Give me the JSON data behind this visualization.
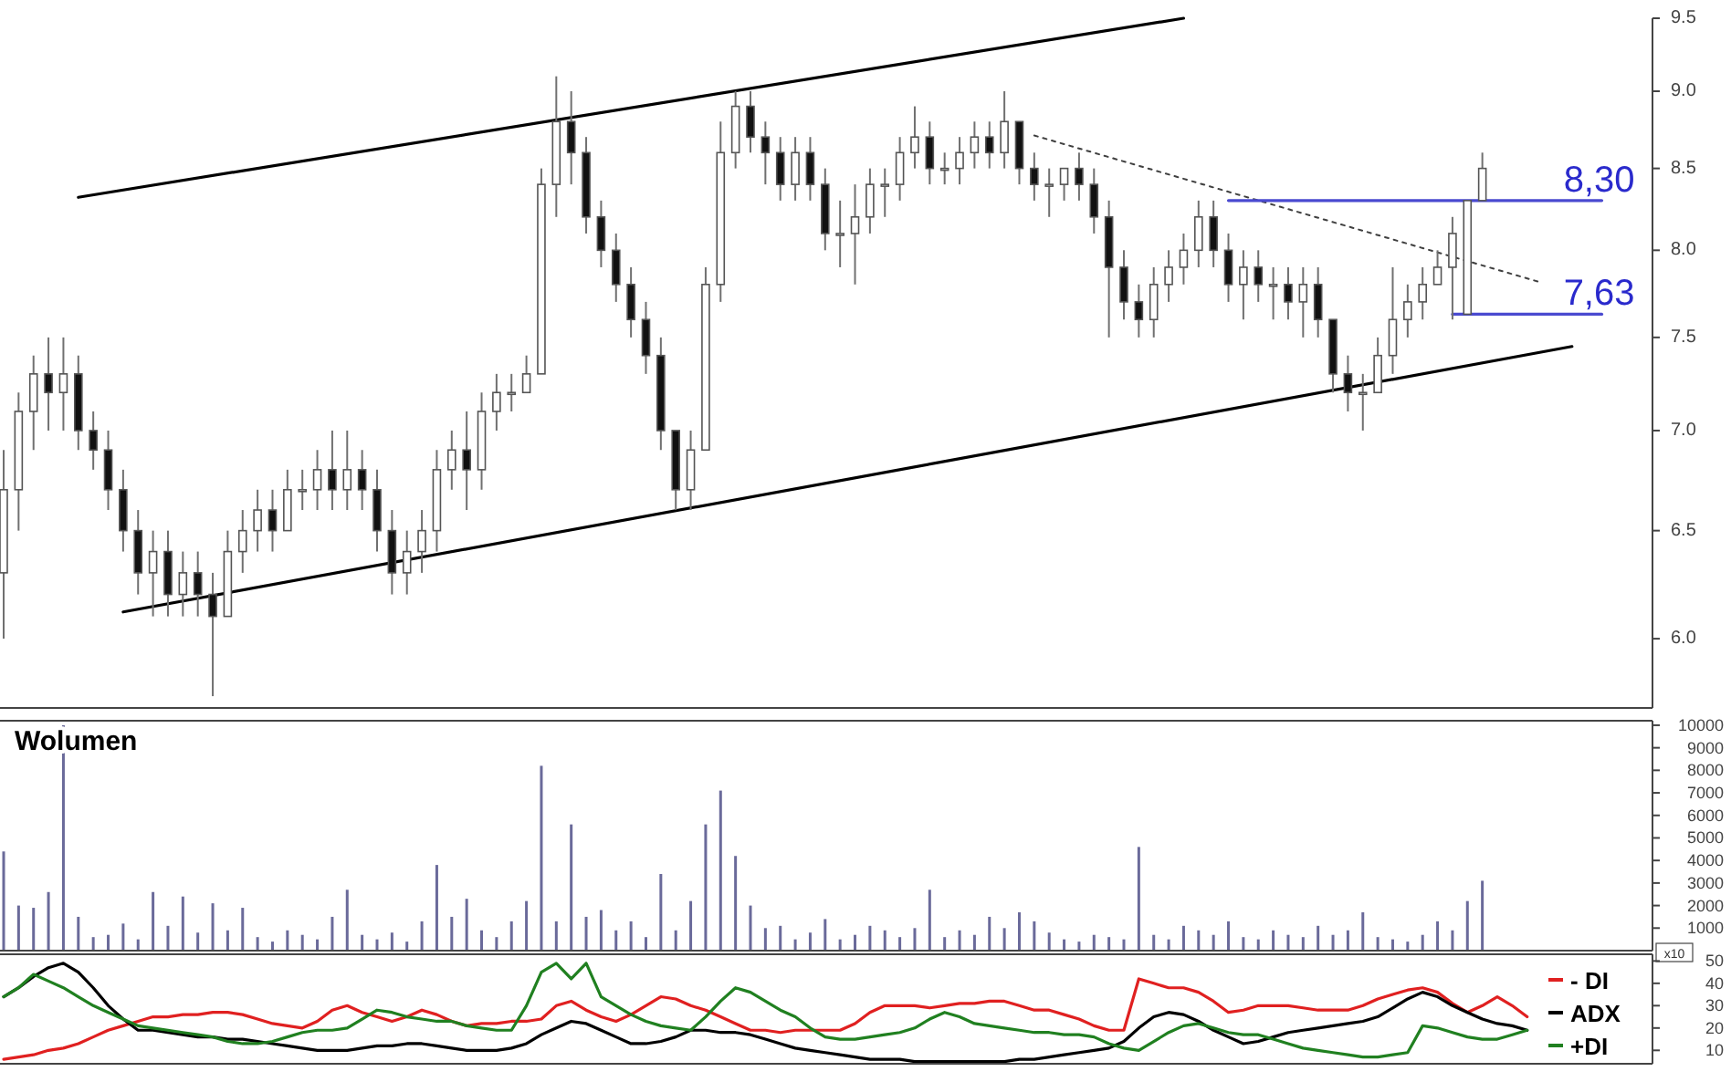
{
  "chart_data": [
    {
      "type": "candlestick",
      "log": true,
      "tick_labels": "y",
      "ylim": [
        5.7,
        9.5
      ],
      "yticks": [
        {
          "value": 6,
          "label": "6.0"
        },
        {
          "value": 6.5,
          "label": "6.5"
        },
        {
          "value": 7,
          "label": "7.0"
        },
        {
          "value": 7.5,
          "label": "7.5"
        },
        {
          "value": 8,
          "label": "8.0"
        },
        {
          "value": 8.5,
          "label": "8.5"
        },
        {
          "value": 9,
          "label": "9.0"
        },
        {
          "value": 9.5,
          "label": "9.5"
        }
      ],
      "categories": [
        null,
        null,
        null,
        null,
        null,
        null,
        null,
        null,
        null,
        null,
        null,
        null,
        null,
        null,
        null,
        null,
        null,
        null,
        null,
        null,
        null,
        null,
        null,
        null,
        null,
        null,
        null,
        null,
        null,
        null,
        null,
        null,
        null,
        null,
        null,
        null,
        null,
        null,
        null,
        null,
        null,
        null,
        null,
        null,
        null,
        null,
        null,
        null,
        null,
        null,
        null,
        null,
        null,
        null,
        null,
        null,
        null,
        null,
        null,
        null,
        null,
        null,
        null,
        null,
        null,
        null,
        null,
        null,
        null,
        null,
        null,
        null,
        null,
        null,
        null,
        null,
        null,
        null,
        null,
        null,
        null,
        null,
        null,
        null,
        null,
        null,
        null,
        null,
        null,
        null,
        null,
        null,
        null,
        null,
        null,
        null,
        null,
        null,
        null,
        null,
        null,
        null,
        null,
        null,
        null,
        null,
        null,
        null
      ],
      "ohlc": [
        [
          6.3,
          6.9,
          6.0,
          6.7
        ],
        [
          6.7,
          7.2,
          6.5,
          7.1
        ],
        [
          7.1,
          7.4,
          6.9,
          7.3
        ],
        [
          7.3,
          7.5,
          7.0,
          7.2
        ],
        [
          7.2,
          7.5,
          7.0,
          7.3
        ],
        [
          7.3,
          7.4,
          6.9,
          7.0
        ],
        [
          7.0,
          7.1,
          6.8,
          6.9
        ],
        [
          6.9,
          7.0,
          6.6,
          6.7
        ],
        [
          6.7,
          6.8,
          6.4,
          6.5
        ],
        [
          6.5,
          6.6,
          6.2,
          6.3
        ],
        [
          6.3,
          6.5,
          6.1,
          6.4
        ],
        [
          6.4,
          6.5,
          6.1,
          6.2
        ],
        [
          6.2,
          6.4,
          6.1,
          6.3
        ],
        [
          6.3,
          6.4,
          6.1,
          6.2
        ],
        [
          6.2,
          6.3,
          5.75,
          6.1
        ],
        [
          6.1,
          6.5,
          6.1,
          6.4
        ],
        [
          6.4,
          6.6,
          6.3,
          6.5
        ],
        [
          6.5,
          6.7,
          6.4,
          6.6
        ],
        [
          6.6,
          6.7,
          6.4,
          6.5
        ],
        [
          6.5,
          6.8,
          6.5,
          6.7
        ],
        [
          6.7,
          6.8,
          6.6,
          6.7
        ],
        [
          6.7,
          6.9,
          6.6,
          6.8
        ],
        [
          6.8,
          7.0,
          6.6,
          6.7
        ],
        [
          6.7,
          7.0,
          6.6,
          6.8
        ],
        [
          6.8,
          6.9,
          6.6,
          6.7
        ],
        [
          6.7,
          6.8,
          6.4,
          6.5
        ],
        [
          6.5,
          6.6,
          6.2,
          6.3
        ],
        [
          6.3,
          6.5,
          6.2,
          6.4
        ],
        [
          6.4,
          6.6,
          6.3,
          6.5
        ],
        [
          6.5,
          6.9,
          6.4,
          6.8
        ],
        [
          6.8,
          7.0,
          6.7,
          6.9
        ],
        [
          6.9,
          7.1,
          6.6,
          6.8
        ],
        [
          6.8,
          7.2,
          6.7,
          7.1
        ],
        [
          7.1,
          7.3,
          7.0,
          7.2
        ],
        [
          7.2,
          7.3,
          7.1,
          7.2
        ],
        [
          7.2,
          7.4,
          7.2,
          7.3
        ],
        [
          7.3,
          8.5,
          7.3,
          8.4
        ],
        [
          8.4,
          9.1,
          8.2,
          8.8
        ],
        [
          8.8,
          9.0,
          8.4,
          8.6
        ],
        [
          8.6,
          8.7,
          8.1,
          8.2
        ],
        [
          8.2,
          8.3,
          7.9,
          8.0
        ],
        [
          8.0,
          8.1,
          7.7,
          7.8
        ],
        [
          7.8,
          7.9,
          7.5,
          7.6
        ],
        [
          7.6,
          7.7,
          7.3,
          7.4
        ],
        [
          7.4,
          7.5,
          6.9,
          7.0
        ],
        [
          7.0,
          7.0,
          6.6,
          6.7
        ],
        [
          6.7,
          7.0,
          6.6,
          6.9
        ],
        [
          6.9,
          7.9,
          6.9,
          7.8
        ],
        [
          7.8,
          8.8,
          7.7,
          8.6
        ],
        [
          8.6,
          9.0,
          8.5,
          8.9
        ],
        [
          8.9,
          9.0,
          8.6,
          8.7
        ],
        [
          8.7,
          8.8,
          8.4,
          8.6
        ],
        [
          8.6,
          8.7,
          8.3,
          8.4
        ],
        [
          8.4,
          8.7,
          8.3,
          8.6
        ],
        [
          8.6,
          8.7,
          8.3,
          8.4
        ],
        [
          8.4,
          8.5,
          8.0,
          8.1
        ],
        [
          8.1,
          8.3,
          7.9,
          8.1
        ],
        [
          8.1,
          8.4,
          7.8,
          8.2
        ],
        [
          8.2,
          8.5,
          8.1,
          8.4
        ],
        [
          8.4,
          8.5,
          8.2,
          8.4
        ],
        [
          8.4,
          8.7,
          8.3,
          8.6
        ],
        [
          8.6,
          8.9,
          8.5,
          8.7
        ],
        [
          8.7,
          8.8,
          8.4,
          8.5
        ],
        [
          8.5,
          8.6,
          8.4,
          8.5
        ],
        [
          8.5,
          8.7,
          8.4,
          8.6
        ],
        [
          8.6,
          8.8,
          8.5,
          8.7
        ],
        [
          8.7,
          8.8,
          8.5,
          8.6
        ],
        [
          8.6,
          9.0,
          8.5,
          8.8
        ],
        [
          8.8,
          8.8,
          8.4,
          8.5
        ],
        [
          8.5,
          8.6,
          8.3,
          8.4
        ],
        [
          8.4,
          8.5,
          8.2,
          8.4
        ],
        [
          8.4,
          8.5,
          8.3,
          8.5
        ],
        [
          8.5,
          8.6,
          8.3,
          8.4
        ],
        [
          8.4,
          8.5,
          8.1,
          8.2
        ],
        [
          8.2,
          8.3,
          7.5,
          7.9
        ],
        [
          7.9,
          8.0,
          7.6,
          7.7
        ],
        [
          7.7,
          7.8,
          7.5,
          7.6
        ],
        [
          7.6,
          7.9,
          7.5,
          7.8
        ],
        [
          7.8,
          8.0,
          7.7,
          7.9
        ],
        [
          7.9,
          8.1,
          7.8,
          8.0
        ],
        [
          8.0,
          8.3,
          7.9,
          8.2
        ],
        [
          8.2,
          8.3,
          7.9,
          8.0
        ],
        [
          8.0,
          8.1,
          7.7,
          7.8
        ],
        [
          7.8,
          8.0,
          7.6,
          7.9
        ],
        [
          7.9,
          8.0,
          7.7,
          7.8
        ],
        [
          7.8,
          7.9,
          7.6,
          7.8
        ],
        [
          7.8,
          7.9,
          7.6,
          7.7
        ],
        [
          7.7,
          7.9,
          7.5,
          7.8
        ],
        [
          7.8,
          7.9,
          7.5,
          7.6
        ],
        [
          7.6,
          7.6,
          7.2,
          7.3
        ],
        [
          7.3,
          7.4,
          7.1,
          7.2
        ],
        [
          7.2,
          7.3,
          7.0,
          7.2
        ],
        [
          7.2,
          7.5,
          7.2,
          7.4
        ],
        [
          7.4,
          7.9,
          7.3,
          7.6
        ],
        [
          7.6,
          7.8,
          7.5,
          7.7
        ],
        [
          7.7,
          7.9,
          7.6,
          7.8
        ],
        [
          7.8,
          8.0,
          7.8,
          7.9
        ],
        [
          7.9,
          8.2,
          7.6,
          8.1
        ],
        [
          7.63,
          8.3,
          7.63,
          8.3
        ],
        [
          8.3,
          8.6,
          8.3,
          8.5
        ],
        null,
        null,
        null,
        null,
        null,
        null,
        null,
        null
      ],
      "series": [
        {
          "type": "line",
          "color": "#000000",
          "line_style": "solid",
          "values": [
            null,
            null,
            null,
            null,
            null,
            8.32,
            null,
            null,
            null,
            null,
            null,
            null,
            null,
            null,
            null,
            null,
            null,
            null,
            null,
            null,
            null,
            null,
            null,
            null,
            null,
            null,
            null,
            null,
            null,
            null,
            null,
            null,
            null,
            null,
            null,
            null,
            null,
            null,
            null,
            null,
            null,
            null,
            null,
            null,
            null,
            null,
            null,
            null,
            null,
            null,
            null,
            null,
            null,
            null,
            null,
            null,
            null,
            null,
            null,
            null,
            null,
            null,
            null,
            null,
            null,
            null,
            null,
            null,
            null,
            null,
            null,
            null,
            null,
            null,
            null,
            null,
            null,
            null,
            null,
            9.5,
            null,
            null,
            null,
            null,
            null,
            null,
            null,
            null,
            null,
            null,
            null,
            null,
            null,
            null,
            null,
            null,
            null,
            null,
            null,
            null,
            null,
            null,
            null,
            null,
            null,
            null,
            null,
            null
          ]
        },
        {
          "type": "line",
          "color": "#000000",
          "line_style": "solid",
          "values": [
            null,
            null,
            null,
            null,
            null,
            null,
            null,
            null,
            6.12,
            null,
            null,
            null,
            null,
            null,
            null,
            null,
            null,
            null,
            null,
            null,
            null,
            null,
            null,
            null,
            null,
            null,
            null,
            null,
            null,
            null,
            null,
            null,
            null,
            null,
            null,
            null,
            null,
            null,
            null,
            null,
            null,
            null,
            null,
            null,
            null,
            null,
            null,
            null,
            null,
            null,
            null,
            null,
            null,
            null,
            null,
            null,
            null,
            null,
            null,
            null,
            null,
            null,
            null,
            null,
            null,
            null,
            null,
            null,
            null,
            null,
            null,
            null,
            null,
            null,
            null,
            null,
            null,
            null,
            null,
            null,
            null,
            null,
            null,
            null,
            null,
            null,
            null,
            null,
            null,
            null,
            null,
            null,
            null,
            null,
            null,
            null,
            null,
            null,
            null,
            null,
            null,
            null,
            null,
            null,
            null,
            7.45,
            null,
            null
          ]
        },
        {
          "type": "line",
          "color": "#404040",
          "line_style": "dotted",
          "values": [
            null,
            null,
            null,
            null,
            null,
            null,
            null,
            null,
            null,
            null,
            null,
            null,
            null,
            null,
            null,
            null,
            null,
            null,
            null,
            null,
            null,
            null,
            null,
            null,
            null,
            null,
            null,
            null,
            null,
            null,
            null,
            null,
            null,
            null,
            null,
            null,
            null,
            null,
            null,
            null,
            null,
            null,
            null,
            null,
            null,
            null,
            null,
            null,
            null,
            null,
            null,
            null,
            null,
            null,
            null,
            null,
            null,
            null,
            null,
            null,
            null,
            null,
            null,
            null,
            null,
            null,
            null,
            null,
            null,
            8.71,
            null,
            null,
            null,
            null,
            null,
            null,
            null,
            null,
            null,
            null,
            null,
            null,
            null,
            null,
            null,
            null,
            null,
            null,
            null,
            null,
            null,
            null,
            null,
            null,
            null,
            null,
            null,
            null,
            null,
            null,
            null,
            null,
            null,
            7.81,
            null,
            null,
            null,
            null
          ]
        },
        {
          "type": "line",
          "color": "#4a4ad0",
          "line_style": "solid",
          "values": [
            null,
            null,
            null,
            null,
            null,
            null,
            null,
            null,
            null,
            null,
            null,
            null,
            null,
            null,
            null,
            null,
            null,
            null,
            null,
            null,
            null,
            null,
            null,
            null,
            null,
            null,
            null,
            null,
            null,
            null,
            null,
            null,
            null,
            null,
            null,
            null,
            null,
            null,
            null,
            null,
            null,
            null,
            null,
            null,
            null,
            null,
            null,
            null,
            null,
            null,
            null,
            null,
            null,
            null,
            null,
            null,
            null,
            null,
            null,
            null,
            null,
            null,
            null,
            null,
            null,
            null,
            null,
            null,
            null,
            null,
            null,
            null,
            null,
            null,
            null,
            null,
            null,
            null,
            null,
            null,
            null,
            null,
            8.3,
            null,
            null,
            null,
            null,
            null,
            null,
            null,
            null,
            null,
            null,
            null,
            null,
            null,
            null,
            null,
            null,
            null,
            null,
            null,
            null,
            null,
            null,
            null,
            null,
            8.3
          ]
        },
        {
          "type": "line",
          "color": "#4a4ad0",
          "line_style": "solid",
          "values": [
            null,
            null,
            null,
            null,
            null,
            null,
            null,
            null,
            null,
            null,
            null,
            null,
            null,
            null,
            null,
            null,
            null,
            null,
            null,
            null,
            null,
            null,
            null,
            null,
            null,
            null,
            null,
            null,
            null,
            null,
            null,
            null,
            null,
            null,
            null,
            null,
            null,
            null,
            null,
            null,
            null,
            null,
            null,
            null,
            null,
            null,
            null,
            null,
            null,
            null,
            null,
            null,
            null,
            null,
            null,
            null,
            null,
            null,
            null,
            null,
            null,
            null,
            null,
            null,
            null,
            null,
            null,
            null,
            null,
            null,
            null,
            null,
            null,
            null,
            null,
            null,
            null,
            null,
            null,
            null,
            null,
            null,
            null,
            null,
            null,
            null,
            null,
            null,
            null,
            null,
            null,
            null,
            null,
            null,
            null,
            null,
            null,
            7.63,
            null,
            null,
            null,
            null,
            null,
            null,
            null,
            null,
            null,
            7.63
          ]
        }
      ],
      "annotations": [
        {
          "text": "8,30",
          "y": 8.3
        },
        {
          "text": "7,63",
          "y": 7.63
        }
      ]
    },
    {
      "type": "bar",
      "title": "Wolumen",
      "tick_labels": "y",
      "ylim": [
        0,
        10200
      ],
      "yticks": [
        1000,
        2000,
        3000,
        4000,
        5000,
        6000,
        7000,
        8000,
        9000,
        10000
      ],
      "color": "#6a6a9a",
      "categories": [
        null,
        null,
        null,
        null,
        null,
        null,
        null,
        null,
        null,
        null,
        null,
        null,
        null,
        null,
        null,
        null,
        null,
        null,
        null,
        null,
        null,
        null,
        null,
        null,
        null,
        null,
        null,
        null,
        null,
        null,
        null,
        null,
        null,
        null,
        null,
        null,
        null,
        null,
        null,
        null,
        null,
        null,
        null,
        null,
        null,
        null,
        null,
        null,
        null,
        null,
        null,
        null,
        null,
        null,
        null,
        null,
        null,
        null,
        null,
        null,
        null,
        null,
        null,
        null,
        null,
        null,
        null,
        null,
        null,
        null,
        null,
        null,
        null,
        null,
        null,
        null,
        null,
        null,
        null,
        null,
        null,
        null,
        null,
        null,
        null,
        null,
        null,
        null,
        null,
        null,
        null,
        null,
        null,
        null,
        null,
        null,
        null,
        null,
        null,
        null,
        null,
        null,
        null,
        null,
        null,
        null,
        null,
        null
      ],
      "values": [
        4400,
        2000,
        1900,
        2600,
        10000,
        1500,
        600,
        700,
        1200,
        500,
        2600,
        1100,
        2400,
        800,
        2100,
        900,
        1900,
        600,
        400,
        900,
        700,
        500,
        1500,
        2700,
        700,
        500,
        800,
        400,
        1300,
        3800,
        1500,
        2300,
        900,
        600,
        1300,
        2200,
        8200,
        1300,
        5600,
        1500,
        1800,
        900,
        1300,
        600,
        3400,
        900,
        2200,
        5600,
        7100,
        4200,
        2000,
        1000,
        1100,
        500,
        800,
        1400,
        500,
        700,
        1100,
        900,
        600,
        1000,
        2700,
        600,
        900,
        700,
        1500,
        1000,
        1700,
        1300,
        800,
        500,
        400,
        700,
        600,
        500,
        4600,
        700,
        500,
        1100,
        900,
        700,
        1300,
        600,
        500,
        900,
        700,
        600,
        1100,
        700,
        900,
        1700,
        600,
        500,
        400,
        700,
        1300,
        900,
        2200,
        3100,
        null,
        null,
        null,
        null,
        null,
        null,
        null,
        null
      ],
      "annotations": [
        "x10"
      ]
    },
    {
      "type": "line",
      "tick_labels": "y",
      "legend": "right",
      "ylim": [
        4,
        53
      ],
      "yticks": [
        10,
        20,
        30,
        40,
        50
      ],
      "categories": [
        null,
        null,
        null,
        null,
        null,
        null,
        null,
        null,
        null,
        null,
        null,
        null,
        null,
        null,
        null,
        null,
        null,
        null,
        null,
        null,
        null,
        null,
        null,
        null,
        null,
        null,
        null,
        null,
        null,
        null,
        null,
        null,
        null,
        null,
        null,
        null,
        null,
        null,
        null,
        null,
        null,
        null,
        null,
        null,
        null,
        null,
        null,
        null,
        null,
        null,
        null,
        null,
        null,
        null,
        null,
        null,
        null,
        null,
        null,
        null,
        null,
        null,
        null,
        null,
        null,
        null,
        null,
        null,
        null,
        null,
        null,
        null,
        null,
        null,
        null,
        null,
        null,
        null,
        null,
        null,
        null,
        null,
        null,
        null,
        null,
        null,
        null,
        null,
        null,
        null,
        null,
        null,
        null,
        null,
        null,
        null,
        null,
        null,
        null,
        null,
        null,
        null,
        null,
        null,
        null,
        null,
        null,
        null
      ],
      "series": [
        {
          "name": "- DI",
          "color": "#e02020",
          "values": [
            6,
            7,
            8,
            10,
            11,
            13,
            16,
            19,
            21,
            23,
            25,
            25,
            26,
            26,
            27,
            27,
            26,
            24,
            22,
            21,
            20,
            23,
            28,
            30,
            27,
            25,
            23,
            25,
            28,
            26,
            23,
            21,
            22,
            22,
            23,
            23,
            24,
            30,
            32,
            28,
            25,
            23,
            26,
            30,
            34,
            33,
            30,
            28,
            25,
            22,
            19,
            19,
            18,
            19,
            19,
            19,
            19,
            22,
            27,
            30,
            30,
            30,
            29,
            30,
            31,
            31,
            32,
            32,
            30,
            28,
            28,
            26,
            24,
            21,
            19,
            19,
            42,
            40,
            38,
            38,
            36,
            32,
            27,
            28,
            30,
            30,
            30,
            29,
            28,
            28,
            28,
            30,
            33,
            35,
            37,
            38,
            36,
            31,
            27,
            30,
            34,
            30,
            25,
            null,
            null,
            null,
            null,
            null
          ]
        },
        {
          "name": "ADX",
          "color": "#000000",
          "values": [
            34,
            38,
            43,
            47,
            49,
            45,
            38,
            30,
            24,
            19,
            19,
            18,
            17,
            16,
            16,
            15,
            15,
            14,
            13,
            12,
            11,
            10,
            10,
            10,
            11,
            12,
            12,
            13,
            13,
            12,
            11,
            10,
            10,
            10,
            11,
            13,
            17,
            20,
            23,
            22,
            19,
            16,
            13,
            13,
            14,
            16,
            19,
            19,
            18,
            18,
            17,
            15,
            13,
            11,
            10,
            9,
            8,
            7,
            6,
            6,
            6,
            5,
            5,
            5,
            5,
            5,
            5,
            5,
            6,
            6,
            7,
            8,
            9,
            10,
            11,
            14,
            20,
            25,
            27,
            26,
            23,
            19,
            16,
            13,
            14,
            16,
            18,
            19,
            20,
            21,
            22,
            23,
            25,
            29,
            33,
            36,
            34,
            30,
            27,
            24,
            22,
            21,
            19,
            null,
            null,
            null,
            null,
            null
          ]
        },
        {
          "name": "+DI",
          "color": "#208020",
          "values": [
            34,
            38,
            44,
            41,
            38,
            34,
            30,
            27,
            24,
            21,
            20,
            19,
            18,
            17,
            16,
            14,
            13,
            13,
            14,
            16,
            18,
            19,
            19,
            20,
            24,
            28,
            27,
            25,
            24,
            23,
            23,
            21,
            20,
            19,
            19,
            30,
            45,
            49,
            42,
            49,
            34,
            30,
            26,
            23,
            21,
            20,
            19,
            25,
            32,
            38,
            36,
            32,
            28,
            25,
            20,
            16,
            15,
            15,
            16,
            17,
            18,
            20,
            24,
            27,
            25,
            22,
            21,
            20,
            19,
            18,
            18,
            17,
            17,
            16,
            13,
            11,
            10,
            14,
            18,
            21,
            22,
            20,
            18,
            17,
            17,
            15,
            13,
            11,
            10,
            9,
            8,
            7,
            7,
            8,
            9,
            21,
            20,
            18,
            16,
            15,
            15,
            17,
            19,
            null,
            null,
            null,
            null,
            null
          ]
        }
      ]
    }
  ]
}
